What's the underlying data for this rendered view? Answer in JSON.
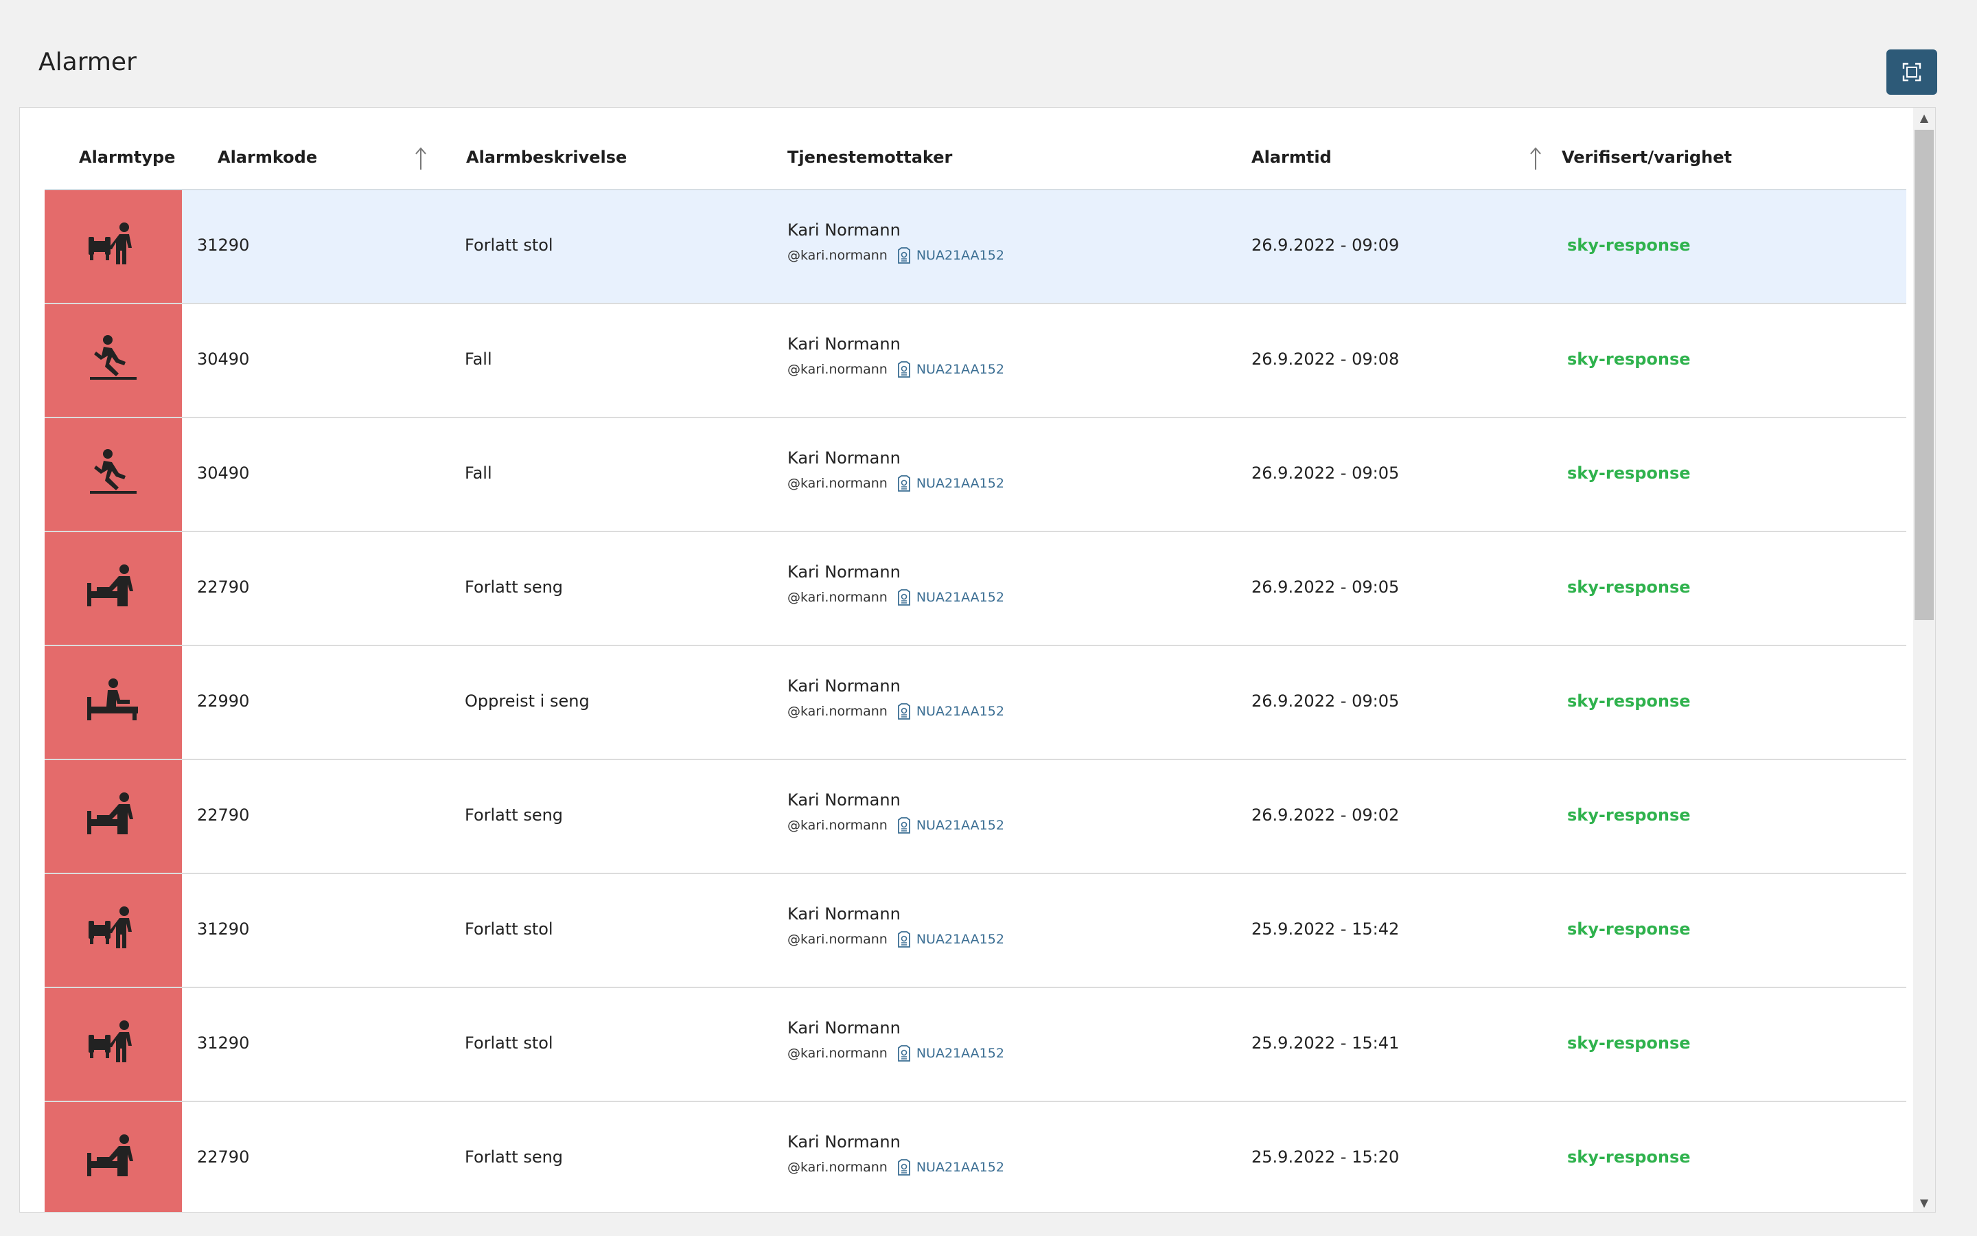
{
  "page": {
    "title": "Alarmer"
  },
  "toolbar": {
    "fullscreen_icon": "fullscreen-icon"
  },
  "table": {
    "headers": {
      "alarm_type": "Alarmtype",
      "alarm_code": "Alarmkode",
      "alarm_description": "Alarmbeskrivelse",
      "recipient": "Tjenestemottaker",
      "alarm_time": "Alarmtid",
      "verified": "Verifisert/varighet"
    },
    "rows": [
      {
        "icon": "leave-chair",
        "code": "31290",
        "description": "Forlatt stol",
        "name": "Kari Normann",
        "user": "@kari.normann",
        "device": "NUA21AA152",
        "time": "26.9.2022 - 09:09",
        "verified": "sky-response"
      },
      {
        "icon": "fall",
        "code": "30490",
        "description": "Fall",
        "name": "Kari Normann",
        "user": "@kari.normann",
        "device": "NUA21AA152",
        "time": "26.9.2022 - 09:08",
        "verified": "sky-response"
      },
      {
        "icon": "fall",
        "code": "30490",
        "description": "Fall",
        "name": "Kari Normann",
        "user": "@kari.normann",
        "device": "NUA21AA152",
        "time": "26.9.2022 - 09:05",
        "verified": "sky-response"
      },
      {
        "icon": "leave-bed",
        "code": "22790",
        "description": "Forlatt seng",
        "name": "Kari Normann",
        "user": "@kari.normann",
        "device": "NUA21AA152",
        "time": "26.9.2022 - 09:05",
        "verified": "sky-response"
      },
      {
        "icon": "sit-up-bed",
        "code": "22990",
        "description": "Oppreist i seng",
        "name": "Kari Normann",
        "user": "@kari.normann",
        "device": "NUA21AA152",
        "time": "26.9.2022 - 09:05",
        "verified": "sky-response"
      },
      {
        "icon": "leave-bed",
        "code": "22790",
        "description": "Forlatt seng",
        "name": "Kari Normann",
        "user": "@kari.normann",
        "device": "NUA21AA152",
        "time": "26.9.2022 - 09:02",
        "verified": "sky-response"
      },
      {
        "icon": "leave-chair",
        "code": "31290",
        "description": "Forlatt stol",
        "name": "Kari Normann",
        "user": "@kari.normann",
        "device": "NUA21AA152",
        "time": "25.9.2022 - 15:42",
        "verified": "sky-response"
      },
      {
        "icon": "leave-chair",
        "code": "31290",
        "description": "Forlatt stol",
        "name": "Kari Normann",
        "user": "@kari.normann",
        "device": "NUA21AA152",
        "time": "25.9.2022 - 15:41",
        "verified": "sky-response"
      },
      {
        "icon": "leave-bed",
        "code": "22790",
        "description": "Forlatt seng",
        "name": "Kari Normann",
        "user": "@kari.normann",
        "device": "NUA21AA152",
        "time": "25.9.2022 - 15:20",
        "verified": "sky-response"
      }
    ]
  },
  "colors": {
    "alarm_type_bg": "#e46b6b",
    "selected_row": "#e8f1fd",
    "verified_text": "#2fb24d",
    "device_link": "#3b6e93",
    "fullscreen_button": "#2d5a78"
  }
}
